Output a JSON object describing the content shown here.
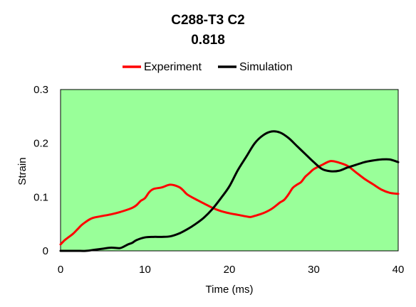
{
  "chart_data": {
    "type": "line",
    "title": "C288-T3 C2",
    "subtitle": "0.818",
    "xlabel": "Time (ms)",
    "ylabel": "Strain",
    "xlim": [
      0,
      40
    ],
    "ylim": [
      0,
      0.3
    ],
    "x_ticks": [
      "0",
      "10",
      "20",
      "30",
      "40"
    ],
    "y_ticks": [
      "0",
      "0.1",
      "0.2",
      "0.3"
    ],
    "grid": false,
    "legend_position": "top",
    "plot_background": "#99ff99",
    "series": [
      {
        "name": "Experiment",
        "color": "#ff0000",
        "x": [
          0,
          0.5,
          1,
          1.5,
          2,
          2.5,
          3,
          3.5,
          4,
          5,
          6,
          7,
          8,
          8.5,
          9,
          9.5,
          10,
          10.5,
          11,
          12,
          13,
          14,
          14.5,
          15,
          16,
          17,
          18,
          19,
          20,
          21,
          22,
          22.5,
          23,
          24,
          25,
          26,
          26.5,
          27,
          27.5,
          28,
          28.5,
          29,
          29.5,
          30,
          31,
          32,
          33,
          34,
          35,
          36,
          37,
          38,
          39,
          40
        ],
        "y": [
          0.012,
          0.02,
          0.026,
          0.032,
          0.04,
          0.048,
          0.054,
          0.059,
          0.062,
          0.065,
          0.068,
          0.072,
          0.077,
          0.08,
          0.085,
          0.093,
          0.098,
          0.109,
          0.115,
          0.118,
          0.123,
          0.119,
          0.113,
          0.105,
          0.096,
          0.088,
          0.08,
          0.074,
          0.07,
          0.067,
          0.064,
          0.063,
          0.065,
          0.07,
          0.078,
          0.09,
          0.095,
          0.105,
          0.117,
          0.123,
          0.128,
          0.138,
          0.145,
          0.152,
          0.16,
          0.167,
          0.164,
          0.158,
          0.146,
          0.134,
          0.124,
          0.114,
          0.108,
          0.106
        ]
      },
      {
        "name": "Simulation",
        "color": "#000000",
        "x": [
          0,
          1,
          2,
          3,
          4,
          5,
          6,
          7,
          7.5,
          8,
          8.5,
          9,
          10,
          11,
          12,
          13,
          14,
          15,
          16,
          17,
          18,
          19,
          20,
          21,
          22,
          23,
          24,
          25,
          26,
          27,
          28,
          29,
          30,
          31,
          32,
          33,
          34,
          35,
          36,
          37,
          38,
          39,
          40
        ],
        "y": [
          0,
          0,
          0,
          0,
          0.002,
          0.004,
          0.006,
          0.005,
          0.008,
          0.012,
          0.015,
          0.02,
          0.025,
          0.026,
          0.026,
          0.027,
          0.032,
          0.04,
          0.05,
          0.062,
          0.078,
          0.098,
          0.12,
          0.15,
          0.175,
          0.2,
          0.215,
          0.222,
          0.22,
          0.21,
          0.195,
          0.18,
          0.165,
          0.152,
          0.148,
          0.149,
          0.155,
          0.16,
          0.165,
          0.168,
          0.17,
          0.17,
          0.165
        ]
      }
    ]
  }
}
